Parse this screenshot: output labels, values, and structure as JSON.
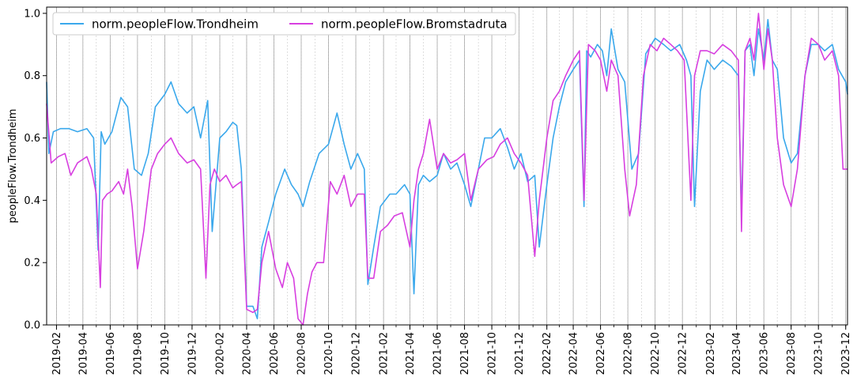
{
  "chart_data": {
    "type": "line",
    "title": "",
    "xlabel": "",
    "ylabel": "peopleFlow.Trondheim",
    "ylim": [
      0,
      1.02
    ],
    "xlim": [
      "2019-01-10",
      "2023-12-05"
    ],
    "yticks": [
      "0.0",
      "0.2",
      "0.4",
      "0.6",
      "0.8",
      "1.0"
    ],
    "xticks": [
      "2019-02",
      "2019-04",
      "2019-06",
      "2019-08",
      "2019-10",
      "2019-12",
      "2020-02",
      "2020-04",
      "2020-06",
      "2020-08",
      "2020-10",
      "2020-12",
      "2021-02",
      "2021-04",
      "2021-06",
      "2021-08",
      "2021-10",
      "2021-12",
      "2022-02",
      "2022-04",
      "2022-06",
      "2022-08",
      "2022-10",
      "2022-12",
      "2023-02",
      "2023-04",
      "2023-06",
      "2023-08",
      "2023-10",
      "2023-12"
    ],
    "grid": {
      "major_x": true,
      "minor_x": true,
      "y": false
    },
    "legend_placement": "top-left",
    "series": [
      {
        "name": "norm.peopleFlow.Trondheim",
        "color": "#3aa8ec",
        "x": [
          "2019-01-10",
          "2019-01-15",
          "2019-01-25",
          "2019-02-10",
          "2019-03-01",
          "2019-03-20",
          "2019-04-10",
          "2019-04-25",
          "2019-05-05",
          "2019-05-12",
          "2019-05-20",
          "2019-06-05",
          "2019-06-25",
          "2019-07-10",
          "2019-07-25",
          "2019-08-10",
          "2019-08-25",
          "2019-09-10",
          "2019-10-01",
          "2019-10-15",
          "2019-11-01",
          "2019-11-20",
          "2019-12-05",
          "2019-12-20",
          "2020-01-05",
          "2020-01-15",
          "2020-02-01",
          "2020-02-15",
          "2020-03-01",
          "2020-03-10",
          "2020-03-20",
          "2020-04-01",
          "2020-04-15",
          "2020-04-25",
          "2020-05-05",
          "2020-05-20",
          "2020-06-05",
          "2020-06-25",
          "2020-07-10",
          "2020-07-25",
          "2020-08-05",
          "2020-08-20",
          "2020-09-10",
          "2020-10-01",
          "2020-10-20",
          "2020-11-05",
          "2020-11-20",
          "2020-12-05",
          "2020-12-20",
          "2020-12-28",
          "2021-01-10",
          "2021-01-25",
          "2021-02-15",
          "2021-03-01",
          "2021-03-20",
          "2021-04-01",
          "2021-04-10",
          "2021-04-20",
          "2021-05-01",
          "2021-05-15",
          "2021-06-01",
          "2021-06-15",
          "2021-07-01",
          "2021-07-15",
          "2021-08-01",
          "2021-08-15",
          "2021-09-01",
          "2021-09-15",
          "2021-10-01",
          "2021-10-20",
          "2021-11-05",
          "2021-11-20",
          "2021-12-05",
          "2021-12-20",
          "2022-01-05",
          "2022-01-15",
          "2022-02-01",
          "2022-02-15",
          "2022-03-01",
          "2022-03-15",
          "2022-04-01",
          "2022-04-15",
          "2022-04-25",
          "2022-05-01",
          "2022-05-10",
          "2022-05-25",
          "2022-06-05",
          "2022-06-15",
          "2022-06-25",
          "2022-07-10",
          "2022-07-25",
          "2022-08-10",
          "2022-08-25",
          "2022-09-10",
          "2022-10-01",
          "2022-10-20",
          "2022-11-05",
          "2022-11-25",
          "2022-12-10",
          "2022-12-20",
          "2022-12-28",
          "2023-01-10",
          "2023-01-25",
          "2023-02-10",
          "2023-03-01",
          "2023-03-20",
          "2023-04-05",
          "2023-04-12",
          "2023-04-20",
          "2023-05-01",
          "2023-05-10",
          "2023-05-20",
          "2023-06-01",
          "2023-06-10",
          "2023-06-20",
          "2023-07-01",
          "2023-07-15",
          "2023-08-01",
          "2023-08-15",
          "2023-09-01",
          "2023-09-15",
          "2023-10-01",
          "2023-10-15",
          "2023-11-01",
          "2023-11-15",
          "2023-12-01",
          "2023-12-05"
        ],
        "values": [
          0.78,
          0.55,
          0.62,
          0.63,
          0.63,
          0.62,
          0.63,
          0.6,
          0.24,
          0.62,
          0.58,
          0.62,
          0.73,
          0.7,
          0.5,
          0.48,
          0.55,
          0.7,
          0.74,
          0.78,
          0.71,
          0.68,
          0.7,
          0.6,
          0.72,
          0.3,
          0.6,
          0.62,
          0.65,
          0.64,
          0.5,
          0.06,
          0.06,
          0.02,
          0.25,
          0.33,
          0.42,
          0.5,
          0.45,
          0.42,
          0.38,
          0.46,
          0.55,
          0.58,
          0.68,
          0.58,
          0.5,
          0.55,
          0.5,
          0.13,
          0.25,
          0.38,
          0.42,
          0.42,
          0.45,
          0.42,
          0.1,
          0.45,
          0.48,
          0.46,
          0.48,
          0.55,
          0.5,
          0.52,
          0.45,
          0.38,
          0.5,
          0.6,
          0.6,
          0.63,
          0.57,
          0.5,
          0.55,
          0.46,
          0.48,
          0.25,
          0.45,
          0.6,
          0.7,
          0.78,
          0.82,
          0.85,
          0.38,
          0.88,
          0.86,
          0.9,
          0.88,
          0.8,
          0.95,
          0.82,
          0.78,
          0.5,
          0.55,
          0.87,
          0.92,
          0.9,
          0.88,
          0.9,
          0.85,
          0.8,
          0.38,
          0.75,
          0.85,
          0.82,
          0.85,
          0.83,
          0.8,
          0.35,
          0.88,
          0.9,
          0.8,
          0.95,
          0.85,
          0.98,
          0.85,
          0.82,
          0.6,
          0.52,
          0.55,
          0.8,
          0.9,
          0.9,
          0.88,
          0.9,
          0.82,
          0.78,
          0.74
        ]
      },
      {
        "name": "norm.peopleFlow.Bromstadruta",
        "color": "#d73fe0",
        "x": [
          "2019-01-10",
          "2019-01-20",
          "2019-02-05",
          "2019-02-20",
          "2019-03-05",
          "2019-03-20",
          "2019-04-10",
          "2019-04-20",
          "2019-05-01",
          "2019-05-10",
          "2019-05-15",
          "2019-05-25",
          "2019-06-05",
          "2019-06-20",
          "2019-07-01",
          "2019-07-10",
          "2019-07-20",
          "2019-08-01",
          "2019-08-15",
          "2019-09-01",
          "2019-09-15",
          "2019-10-01",
          "2019-10-15",
          "2019-11-01",
          "2019-11-20",
          "2019-12-05",
          "2019-12-20",
          "2020-01-01",
          "2020-01-10",
          "2020-01-20",
          "2020-02-01",
          "2020-02-15",
          "2020-03-01",
          "2020-03-10",
          "2020-03-20",
          "2020-04-01",
          "2020-04-15",
          "2020-04-25",
          "2020-05-05",
          "2020-05-20",
          "2020-06-05",
          "2020-06-20",
          "2020-07-01",
          "2020-07-15",
          "2020-07-25",
          "2020-08-05",
          "2020-08-15",
          "2020-08-25",
          "2020-09-05",
          "2020-09-20",
          "2020-10-05",
          "2020-10-20",
          "2020-11-05",
          "2020-11-20",
          "2020-12-05",
          "2020-12-20",
          "2020-12-28",
          "2021-01-10",
          "2021-01-25",
          "2021-02-10",
          "2021-02-25",
          "2021-03-15",
          "2021-04-01",
          "2021-04-10",
          "2021-04-20",
          "2021-05-01",
          "2021-05-15",
          "2021-06-01",
          "2021-06-15",
          "2021-07-01",
          "2021-07-15",
          "2021-08-01",
          "2021-08-15",
          "2021-09-01",
          "2021-09-20",
          "2021-10-05",
          "2021-10-20",
          "2021-11-05",
          "2021-11-20",
          "2021-12-05",
          "2021-12-20",
          "2022-01-05",
          "2022-01-15",
          "2022-02-01",
          "2022-02-15",
          "2022-03-01",
          "2022-03-15",
          "2022-04-01",
          "2022-04-15",
          "2022-04-25",
          "2022-05-05",
          "2022-05-20",
          "2022-06-01",
          "2022-06-15",
          "2022-06-25",
          "2022-07-10",
          "2022-07-25",
          "2022-08-05",
          "2022-08-20",
          "2022-09-05",
          "2022-09-20",
          "2022-10-05",
          "2022-10-20",
          "2022-11-05",
          "2022-11-20",
          "2022-12-05",
          "2022-12-20",
          "2022-12-28",
          "2023-01-10",
          "2023-01-25",
          "2023-02-10",
          "2023-03-01",
          "2023-03-20",
          "2023-04-05",
          "2023-04-12",
          "2023-04-20",
          "2023-05-01",
          "2023-05-10",
          "2023-05-20",
          "2023-06-01",
          "2023-06-10",
          "2023-06-20",
          "2023-07-01",
          "2023-07-15",
          "2023-08-01",
          "2023-08-15",
          "2023-09-01",
          "2023-09-15",
          "2023-10-01",
          "2023-10-15",
          "2023-11-01",
          "2023-11-15",
          "2023-11-25",
          "2023-12-05"
        ],
        "values": [
          0.71,
          0.52,
          0.54,
          0.55,
          0.48,
          0.52,
          0.54,
          0.5,
          0.42,
          0.12,
          0.4,
          0.42,
          0.43,
          0.46,
          0.42,
          0.5,
          0.38,
          0.18,
          0.3,
          0.5,
          0.55,
          0.58,
          0.6,
          0.55,
          0.52,
          0.53,
          0.5,
          0.15,
          0.45,
          0.5,
          0.46,
          0.48,
          0.44,
          0.45,
          0.46,
          0.05,
          0.04,
          0.05,
          0.2,
          0.3,
          0.18,
          0.12,
          0.2,
          0.15,
          0.02,
          0.0,
          0.1,
          0.17,
          0.2,
          0.2,
          0.46,
          0.42,
          0.48,
          0.38,
          0.42,
          0.42,
          0.15,
          0.15,
          0.3,
          0.32,
          0.35,
          0.36,
          0.25,
          0.4,
          0.5,
          0.55,
          0.66,
          0.5,
          0.55,
          0.52,
          0.53,
          0.55,
          0.4,
          0.5,
          0.53,
          0.54,
          0.58,
          0.6,
          0.55,
          0.52,
          0.48,
          0.22,
          0.4,
          0.6,
          0.72,
          0.75,
          0.8,
          0.85,
          0.88,
          0.4,
          0.9,
          0.88,
          0.85,
          0.75,
          0.85,
          0.8,
          0.5,
          0.35,
          0.45,
          0.8,
          0.9,
          0.88,
          0.92,
          0.9,
          0.88,
          0.85,
          0.4,
          0.8,
          0.88,
          0.88,
          0.87,
          0.9,
          0.88,
          0.85,
          0.3,
          0.88,
          0.92,
          0.85,
          1.0,
          0.82,
          0.95,
          0.85,
          0.6,
          0.45,
          0.38,
          0.5,
          0.8,
          0.92,
          0.9,
          0.85,
          0.88,
          0.8,
          0.5,
          0.5
        ]
      }
    ]
  }
}
